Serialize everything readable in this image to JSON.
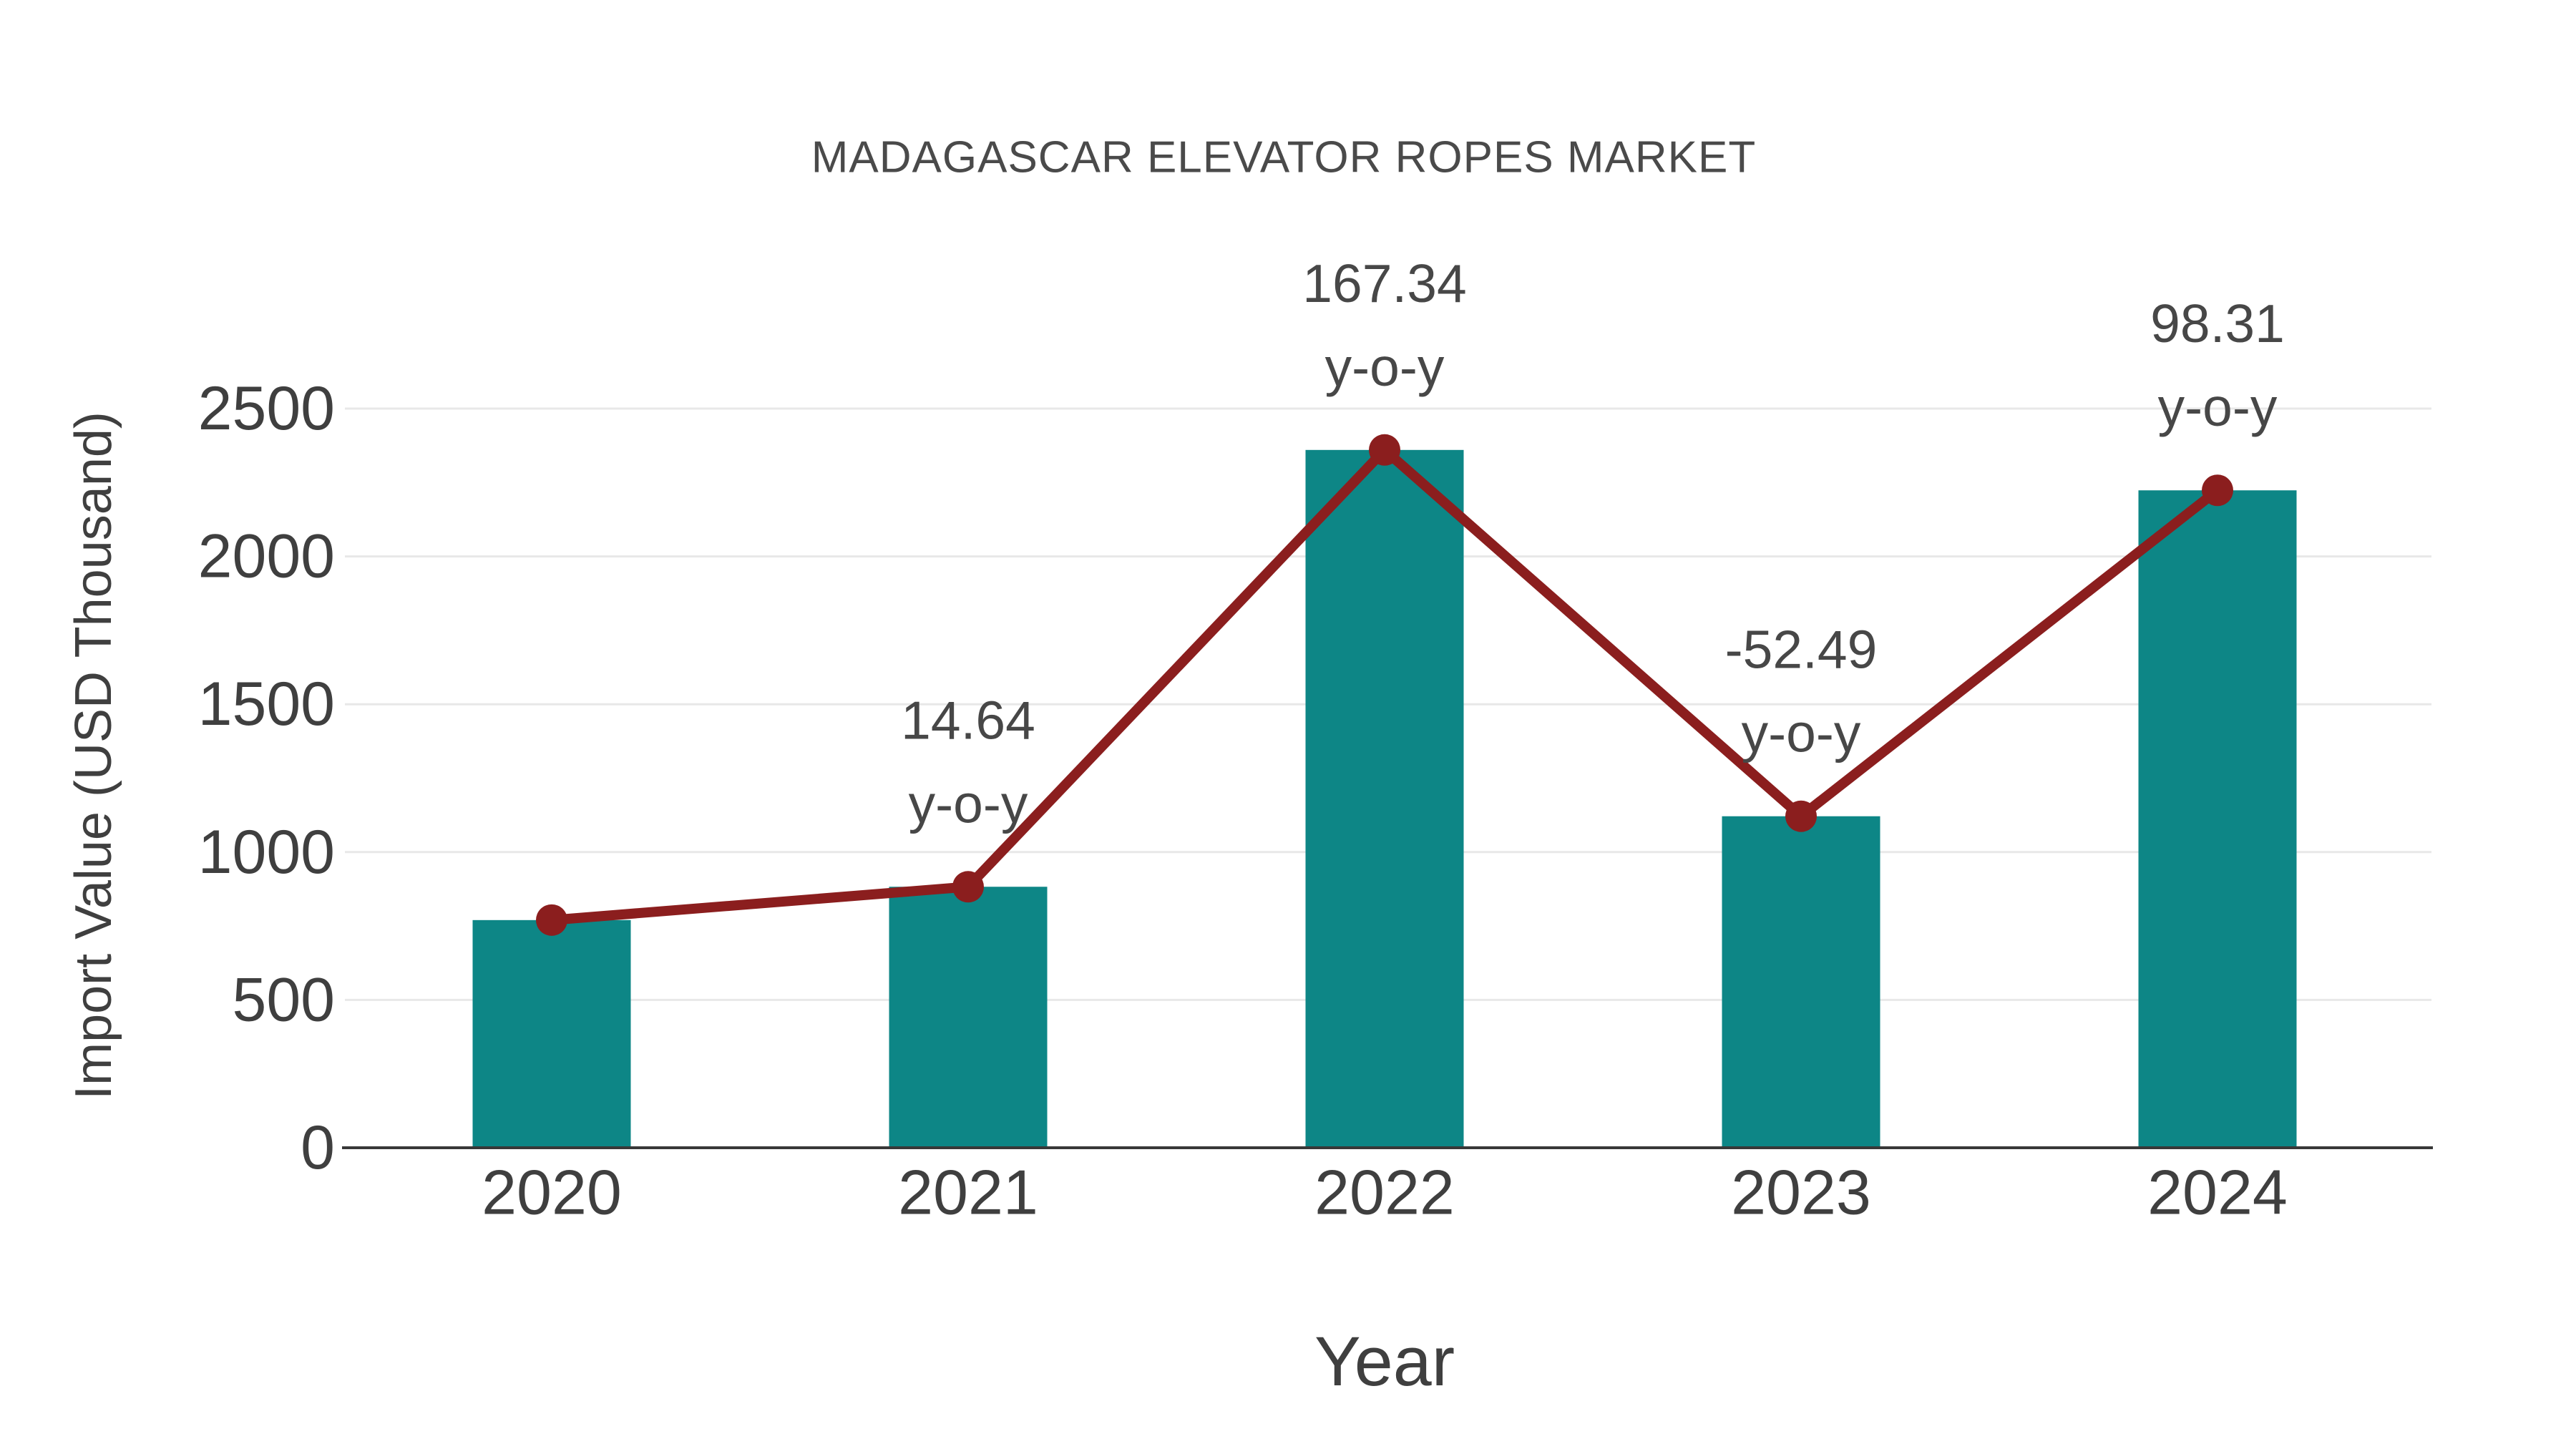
{
  "chart_data": {
    "type": "bar",
    "title": "MADAGASCAR ELEVATOR ROPES MARKET",
    "xlabel": "Year",
    "ylabel": "Import Value (USD Thousand)",
    "categories": [
      "2020",
      "2021",
      "2022",
      "2023",
      "2024"
    ],
    "series": [
      {
        "name": "Import Value (USD Thousand)",
        "type": "bar",
        "values": [
          770,
          882.7,
          2360.1,
          1121.2,
          2223.5
        ]
      },
      {
        "name": "y-o-y growth",
        "type": "line",
        "values": [
          770,
          882.7,
          2360.1,
          1121.2,
          2223.5
        ],
        "yoy_percent": [
          null,
          14.64,
          167.34,
          -52.49,
          98.31
        ]
      }
    ],
    "annotations": [
      {
        "category": "2021",
        "line1": "14.64",
        "line2": "y-o-y"
      },
      {
        "category": "2022",
        "line1": "167.34",
        "line2": "y-o-y"
      },
      {
        "category": "2023",
        "line1": "-52.49",
        "line2": "y-o-y"
      },
      {
        "category": "2024",
        "line1": "98.31",
        "line2": "y-o-y"
      }
    ],
    "yticks": [
      "0",
      "500",
      "1000",
      "1500",
      "2000",
      "2500"
    ],
    "ylim": [
      0,
      2500
    ],
    "grid": "horizontal",
    "legend": "none",
    "colors": {
      "bar": "#0d8686",
      "line": "#8b1e1e",
      "marker": "#8b1e1e",
      "grid": "#e8e8e8",
      "axis": "#383838",
      "text": "#3f3f3f"
    }
  }
}
